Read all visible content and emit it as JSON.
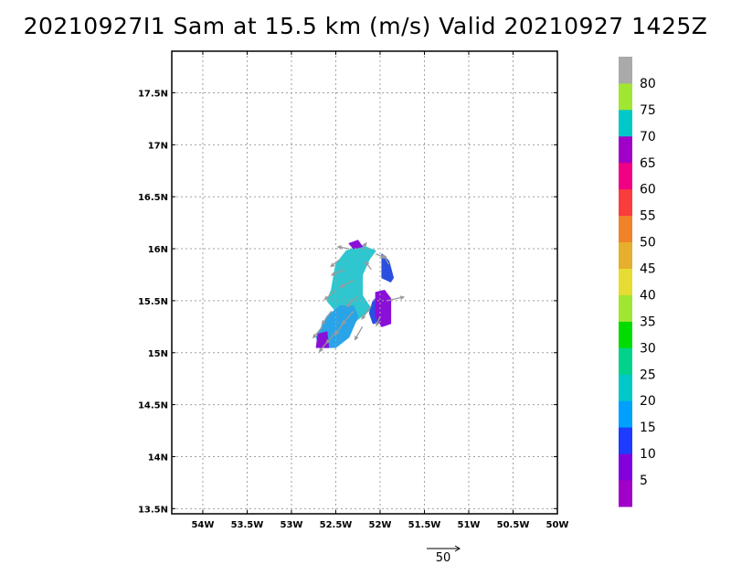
{
  "title": "20210927I1 Sam at 15.5 km (m/s) Valid 20210927 1425Z",
  "chart_data": {
    "type": "heatmap",
    "title": "20210927I1 Sam at 15.5 km (m/s) Valid 20210927 1425Z",
    "xlabel": "",
    "ylabel": "",
    "xlim": [
      -54.35,
      -50.0
    ],
    "ylim": [
      13.45,
      17.9
    ],
    "x_ticks": [
      -54,
      -53.5,
      -53,
      -52.5,
      -52,
      -51.5,
      -51,
      -50.5,
      -50
    ],
    "x_tick_labels": [
      "54W",
      "53.5W",
      "53W",
      "52.5W",
      "52W",
      "51.5W",
      "51W",
      "50.5W",
      "50W"
    ],
    "y_ticks": [
      13.5,
      14,
      14.5,
      15,
      15.5,
      16,
      16.5,
      17,
      17.5
    ],
    "y_tick_labels": [
      "13.5N",
      "14N",
      "14.5N",
      "15N",
      "15.5N",
      "16N",
      "16.5N",
      "17N",
      "17.5N"
    ],
    "grid": true,
    "colorbar": {
      "labels": [
        "5",
        "10",
        "15",
        "20",
        "25",
        "30",
        "35",
        "40",
        "45",
        "50",
        "55",
        "60",
        "65",
        "70",
        "75",
        "80"
      ],
      "colors": [
        "#a000c8",
        "#8200dc",
        "#1e3cff",
        "#00a0ff",
        "#00c8c8",
        "#00d28c",
        "#00dc00",
        "#a0e632",
        "#e6dc32",
        "#e6af2d",
        "#f08228",
        "#fa3c3c",
        "#f00082",
        "#a000c8",
        "#00c8c8",
        "#a0e632",
        "#aaaaaa"
      ]
    },
    "wind_areas": [
      {
        "name": "cyan core",
        "color": "#2fc6cf",
        "polygon": [
          [
            -52.55,
            15.6
          ],
          [
            -52.5,
            15.85
          ],
          [
            -52.38,
            15.98
          ],
          [
            -52.2,
            16.03
          ],
          [
            -52.05,
            15.98
          ],
          [
            -52.12,
            15.9
          ],
          [
            -52.2,
            15.75
          ],
          [
            -52.2,
            15.55
          ],
          [
            -52.1,
            15.42
          ],
          [
            -52.25,
            15.32
          ],
          [
            -52.35,
            15.25
          ],
          [
            -52.5,
            15.25
          ],
          [
            -52.5,
            15.4
          ],
          [
            -52.6,
            15.5
          ]
        ]
      },
      {
        "name": "southwest tail",
        "color": "#2aa4e8",
        "polygon": [
          [
            -52.72,
            15.15
          ],
          [
            -52.6,
            15.35
          ],
          [
            -52.45,
            15.45
          ],
          [
            -52.3,
            15.45
          ],
          [
            -52.25,
            15.35
          ],
          [
            -52.35,
            15.15
          ],
          [
            -52.5,
            15.05
          ],
          [
            -52.68,
            15.05
          ]
        ]
      },
      {
        "name": "eastern blue",
        "color": "#2a4fe0",
        "polygon": [
          [
            -52.08,
            15.5
          ],
          [
            -52.0,
            15.55
          ],
          [
            -51.96,
            15.48
          ],
          [
            -51.95,
            15.3
          ],
          [
            -52.08,
            15.28
          ],
          [
            -52.12,
            15.38
          ]
        ]
      },
      {
        "name": "northeast blue",
        "color": "#2a4fe0",
        "polygon": [
          [
            -51.98,
            15.95
          ],
          [
            -51.9,
            15.88
          ],
          [
            -51.85,
            15.72
          ],
          [
            -51.88,
            15.68
          ],
          [
            -51.98,
            15.72
          ]
        ]
      },
      {
        "name": "purple east",
        "color": "#8a10d8",
        "polygon": [
          [
            -52.05,
            15.58
          ],
          [
            -51.95,
            15.6
          ],
          [
            -51.88,
            15.52
          ],
          [
            -51.88,
            15.28
          ],
          [
            -51.98,
            15.25
          ],
          [
            -52.05,
            15.35
          ]
        ]
      },
      {
        "name": "purple southwest",
        "color": "#8a10d8",
        "polygon": [
          [
            -52.72,
            15.05
          ],
          [
            -52.7,
            15.18
          ],
          [
            -52.6,
            15.2
          ],
          [
            -52.58,
            15.05
          ]
        ]
      },
      {
        "name": "purple north",
        "color": "#8a10d8",
        "polygon": [
          [
            -52.35,
            16.05
          ],
          [
            -52.25,
            16.08
          ],
          [
            -52.2,
            16.02
          ],
          [
            -52.3,
            16.0
          ]
        ]
      }
    ],
    "vectors": [
      {
        "lon": -52.6,
        "lat": 15.1,
        "u": -8,
        "v": -10
      },
      {
        "lon": -52.5,
        "lat": 15.2,
        "u": -10,
        "v": -12
      },
      {
        "lon": -52.4,
        "lat": 15.3,
        "u": -10,
        "v": -14
      },
      {
        "lon": -52.3,
        "lat": 15.4,
        "u": -12,
        "v": -14
      },
      {
        "lon": -52.25,
        "lat": 15.55,
        "u": -12,
        "v": -12
      },
      {
        "lon": -52.3,
        "lat": 15.7,
        "u": -14,
        "v": -8
      },
      {
        "lon": -52.4,
        "lat": 15.8,
        "u": -14,
        "v": -6
      },
      {
        "lon": -52.45,
        "lat": 15.9,
        "u": -10,
        "v": -8
      },
      {
        "lon": -52.35,
        "lat": 16.0,
        "u": -12,
        "v": 2
      },
      {
        "lon": -52.2,
        "lat": 16.0,
        "u": 4,
        "v": 6
      },
      {
        "lon": -52.05,
        "lat": 15.95,
        "u": 10,
        "v": -4
      },
      {
        "lon": -52.1,
        "lat": 15.8,
        "u": -6,
        "v": 8
      },
      {
        "lon": -52.5,
        "lat": 15.6,
        "u": -12,
        "v": -10
      },
      {
        "lon": -52.55,
        "lat": 15.4,
        "u": -10,
        "v": -14
      },
      {
        "lon": -52.65,
        "lat": 15.25,
        "u": -10,
        "v": -12
      },
      {
        "lon": -52.1,
        "lat": 15.45,
        "u": -10,
        "v": -14
      },
      {
        "lon": -52.0,
        "lat": 15.35,
        "u": -4,
        "v": -10
      },
      {
        "lon": -51.92,
        "lat": 15.5,
        "u": 18,
        "v": 4
      },
      {
        "lon": -51.9,
        "lat": 15.85,
        "u": -6,
        "v": 10
      },
      {
        "lon": -52.2,
        "lat": 15.25,
        "u": -8,
        "v": -14
      }
    ],
    "reference_vector": {
      "value": 50,
      "label": "50"
    }
  }
}
